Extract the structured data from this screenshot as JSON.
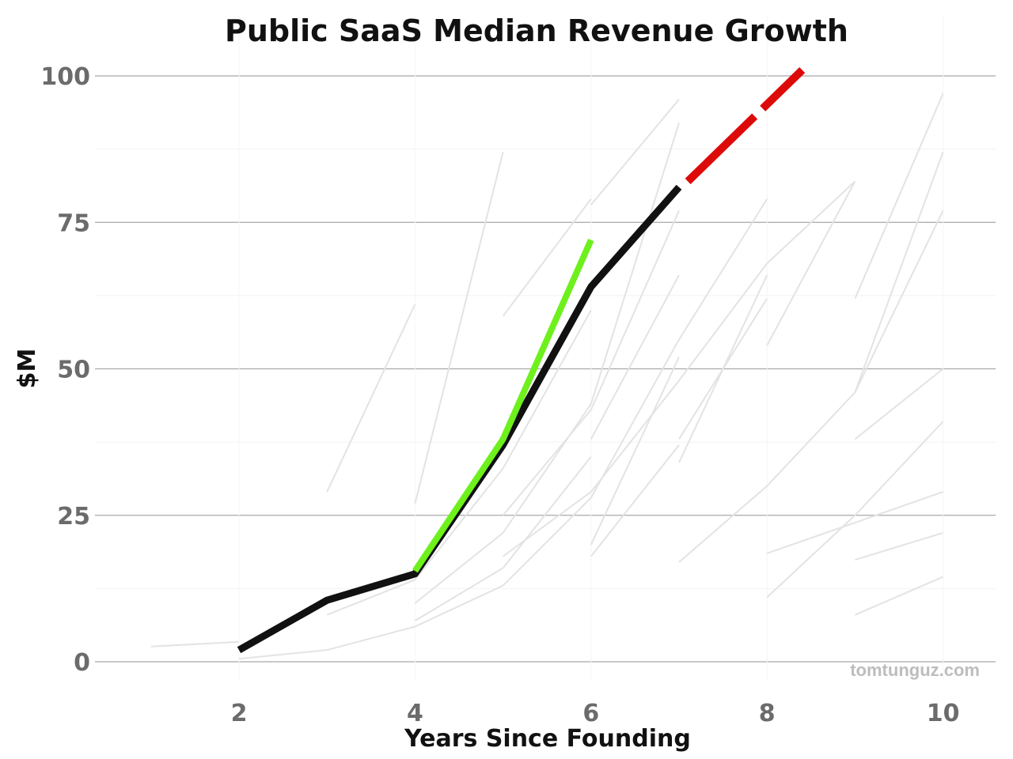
{
  "chart_data": {
    "type": "line",
    "title": "Public SaaS Median Revenue Growth",
    "xlabel": "Years Since Founding",
    "ylabel": "$M",
    "watermark": "tomtunguz.com",
    "xlim": [
      0.5,
      10.6
    ],
    "ylim": [
      -4,
      106
    ],
    "xticks": [
      2,
      4,
      6,
      8,
      10
    ],
    "yticks": [
      0,
      25,
      50,
      75,
      100
    ],
    "grid": true,
    "legend": "none",
    "colors": {
      "median": "#111111",
      "highlight": "#6ef01c",
      "projection": "#dd0a0a",
      "companies": "#e3e3e3",
      "grid": "#a8a8a8"
    },
    "series": [
      {
        "role": "median",
        "x": [
          2,
          3,
          4,
          5,
          6,
          7
        ],
        "y": [
          2,
          10.5,
          15,
          37,
          64,
          81
        ]
      },
      {
        "role": "highlight",
        "x": [
          4,
          5,
          6
        ],
        "y": [
          15.5,
          38,
          72
        ]
      },
      {
        "role": "projection",
        "style": "dashed",
        "x": [
          7.1,
          8.4
        ],
        "y": [
          82,
          101
        ]
      }
    ],
    "company_lines": [
      {
        "x": [
          1,
          2
        ],
        "y": [
          2.6,
          3.4
        ]
      },
      {
        "x": [
          2,
          3,
          4,
          5,
          6
        ],
        "y": [
          0.5,
          2,
          6,
          13,
          28
        ]
      },
      {
        "x": [
          3,
          4
        ],
        "y": [
          29,
          61
        ]
      },
      {
        "x": [
          4,
          5
        ],
        "y": [
          27,
          87
        ]
      },
      {
        "x": [
          3,
          4,
          5,
          6
        ],
        "y": [
          8,
          14,
          33,
          60
        ]
      },
      {
        "x": [
          5,
          6
        ],
        "y": [
          59,
          79
        ]
      },
      {
        "x": [
          6,
          7
        ],
        "y": [
          78,
          96
        ]
      },
      {
        "x": [
          4,
          5,
          6,
          7
        ],
        "y": [
          10,
          22,
          44,
          92
        ]
      },
      {
        "x": [
          4,
          5,
          6
        ],
        "y": [
          7,
          16,
          35
        ]
      },
      {
        "x": [
          5,
          6,
          7
        ],
        "y": [
          18,
          29,
          48
        ]
      },
      {
        "x": [
          6,
          7
        ],
        "y": [
          18,
          37
        ]
      },
      {
        "x": [
          6,
          7
        ],
        "y": [
          20,
          52
        ]
      },
      {
        "x": [
          6,
          7
        ],
        "y": [
          38,
          66
        ]
      },
      {
        "x": [
          6,
          7,
          8
        ],
        "y": [
          28,
          55,
          79
        ]
      },
      {
        "x": [
          7,
          8
        ],
        "y": [
          38,
          62
        ]
      },
      {
        "x": [
          7,
          8
        ],
        "y": [
          34,
          66
        ]
      },
      {
        "x": [
          7,
          8
        ],
        "y": [
          17,
          30
        ]
      },
      {
        "x": [
          7,
          8,
          9
        ],
        "y": [
          48,
          68,
          82
        ]
      },
      {
        "x": [
          8,
          9
        ],
        "y": [
          54,
          82
        ]
      },
      {
        "x": [
          8,
          9,
          10
        ],
        "y": [
          30,
          46,
          87
        ]
      },
      {
        "x": [
          9,
          10
        ],
        "y": [
          62,
          97
        ]
      },
      {
        "x": [
          9,
          10
        ],
        "y": [
          38,
          50
        ]
      },
      {
        "x": [
          8,
          9,
          10
        ],
        "y": [
          11,
          25,
          41
        ]
      },
      {
        "x": [
          8,
          10
        ],
        "y": [
          18.5,
          29
        ]
      },
      {
        "x": [
          9,
          10
        ],
        "y": [
          17.4,
          22
        ]
      },
      {
        "x": [
          9,
          10
        ],
        "y": [
          8,
          14.5
        ]
      },
      {
        "x": [
          9,
          10
        ],
        "y": [
          46,
          77
        ]
      },
      {
        "x": [
          5,
          6,
          7
        ],
        "y": [
          25,
          43,
          77
        ]
      }
    ]
  }
}
